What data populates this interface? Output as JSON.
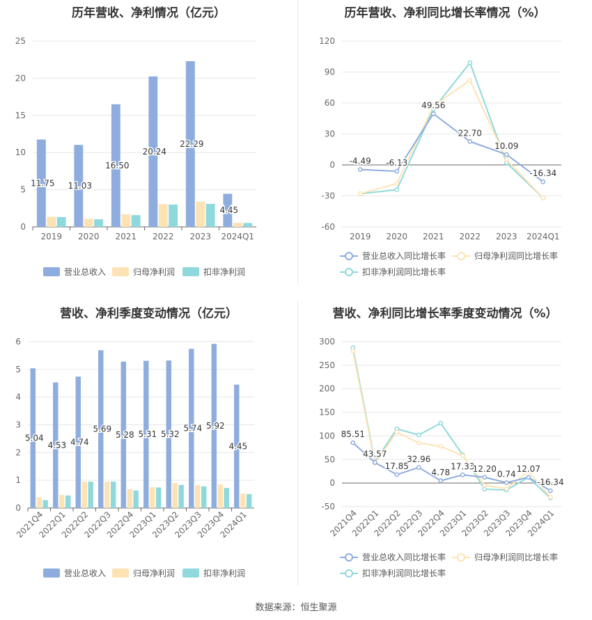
{
  "source": "数据来源：恒生聚源",
  "colors": {
    "revenue": "#8eadde",
    "parent_profit": "#fde3b4",
    "nonrecurring_profit": "#8fd9dc",
    "revenue_line": "#8eadde",
    "parent_line": "#fde3b4",
    "nonrecurring_line": "#8fd9dc",
    "grid": "#e6e6e6",
    "axis_text": "#666666"
  },
  "chart_data": [
    {
      "id": "annual-amount",
      "type": "bar",
      "title": "历年营收、净利情况（亿元）",
      "categories": [
        "2019",
        "2020",
        "2021",
        "2022",
        "2023",
        "2024Q1"
      ],
      "ylim": [
        0,
        25
      ],
      "yticks": [
        0,
        5,
        10,
        15,
        20,
        25
      ],
      "grid": true,
      "legend": "bottom",
      "series": [
        {
          "name": "营业总收入",
          "values": [
            11.75,
            11.03,
            16.5,
            20.24,
            22.29,
            4.45
          ],
          "labels": [
            "11.75",
            "11.03",
            "16.50",
            "20.24",
            "22.29",
            "4.45"
          ]
        },
        {
          "name": "归母净利润",
          "values": [
            1.35,
            1.08,
            1.7,
            3.05,
            3.4,
            0.55
          ]
        },
        {
          "name": "扣非净利润",
          "values": [
            1.32,
            1.02,
            1.58,
            3.0,
            3.1,
            0.52
          ]
        }
      ]
    },
    {
      "id": "annual-growth",
      "type": "line",
      "title": "历年营收、净利同比增长率情况（%）",
      "categories": [
        "2019",
        "2020",
        "2021",
        "2022",
        "2023",
        "2024Q1"
      ],
      "ylim": [
        -60,
        120
      ],
      "yticks": [
        -60,
        -30,
        0,
        30,
        60,
        90,
        120
      ],
      "grid": true,
      "legend": "bottom",
      "series": [
        {
          "name": "营业总收入同比增长率",
          "values": [
            -4.49,
            -6.13,
            49.56,
            22.7,
            10.09,
            -16.34
          ],
          "labels": [
            "-4.49",
            "-6.13",
            "49.56",
            "22.70",
            "10.09",
            "-16.34"
          ]
        },
        {
          "name": "归母净利润同比增长率",
          "values": [
            -28,
            -18,
            57,
            82,
            5,
            -32
          ]
        },
        {
          "name": "扣非净利润同比增长率",
          "values": [
            -28,
            -24,
            54,
            99,
            2,
            -32
          ]
        }
      ]
    },
    {
      "id": "quarterly-amount",
      "type": "bar",
      "title": "营收、净利季度变动情况（亿元）",
      "categories": [
        "2021Q4",
        "2022Q1",
        "2022Q2",
        "2022Q3",
        "2022Q4",
        "2023Q1",
        "2023Q2",
        "2023Q3",
        "2023Q4",
        "2024Q1"
      ],
      "ylim": [
        0,
        6
      ],
      "yticks": [
        0,
        1,
        2,
        3,
        4,
        5,
        6
      ],
      "grid": true,
      "legend": "bottom",
      "series": [
        {
          "name": "营业总收入",
          "values": [
            5.04,
            4.53,
            4.74,
            5.69,
            5.28,
            5.31,
            5.32,
            5.74,
            5.92,
            4.45
          ],
          "labels": [
            "5.04",
            "4.53",
            "4.74",
            "5.69",
            "5.28",
            "5.31",
            "5.32",
            "5.74",
            "5.92",
            "4.45"
          ]
        },
        {
          "name": "归母净利润",
          "values": [
            0.38,
            0.47,
            0.95,
            0.95,
            0.68,
            0.75,
            0.9,
            0.82,
            0.85,
            0.52
          ]
        },
        {
          "name": "扣非净利润",
          "values": [
            0.28,
            0.45,
            0.95,
            0.95,
            0.63,
            0.74,
            0.83,
            0.78,
            0.72,
            0.5
          ]
        }
      ]
    },
    {
      "id": "quarterly-growth",
      "type": "line",
      "title": "营收、净利同比增长率季度变动情况（%）",
      "categories": [
        "2021Q4",
        "2022Q1",
        "2022Q2",
        "2022Q3",
        "2022Q4",
        "2023Q1",
        "2023Q2",
        "2023Q3",
        "2023Q4",
        "2024Q1"
      ],
      "ylim": [
        -50,
        300
      ],
      "yticks": [
        -50,
        0,
        50,
        100,
        150,
        200,
        250,
        300
      ],
      "grid": true,
      "legend": "bottom",
      "series": [
        {
          "name": "营业总收入同比增长率",
          "values": [
            85.51,
            43.57,
            17.85,
            32.96,
            4.78,
            17.33,
            12.2,
            0.74,
            12.07,
            -16.34
          ],
          "labels": [
            "85.51",
            "43.57",
            "17.85",
            "32.96",
            "4.78",
            "17.33",
            "12.20",
            "0.74",
            "12.07",
            "-16.34"
          ]
        },
        {
          "name": "归母净利润同比增长率",
          "values": [
            280,
            42,
            108,
            85,
            78,
            58,
            -5,
            -12,
            25,
            -30
          ]
        },
        {
          "name": "扣非净利润同比增长率",
          "values": [
            287,
            45,
            115,
            102,
            127,
            60,
            -13,
            -15,
            12,
            -32
          ]
        }
      ]
    }
  ]
}
